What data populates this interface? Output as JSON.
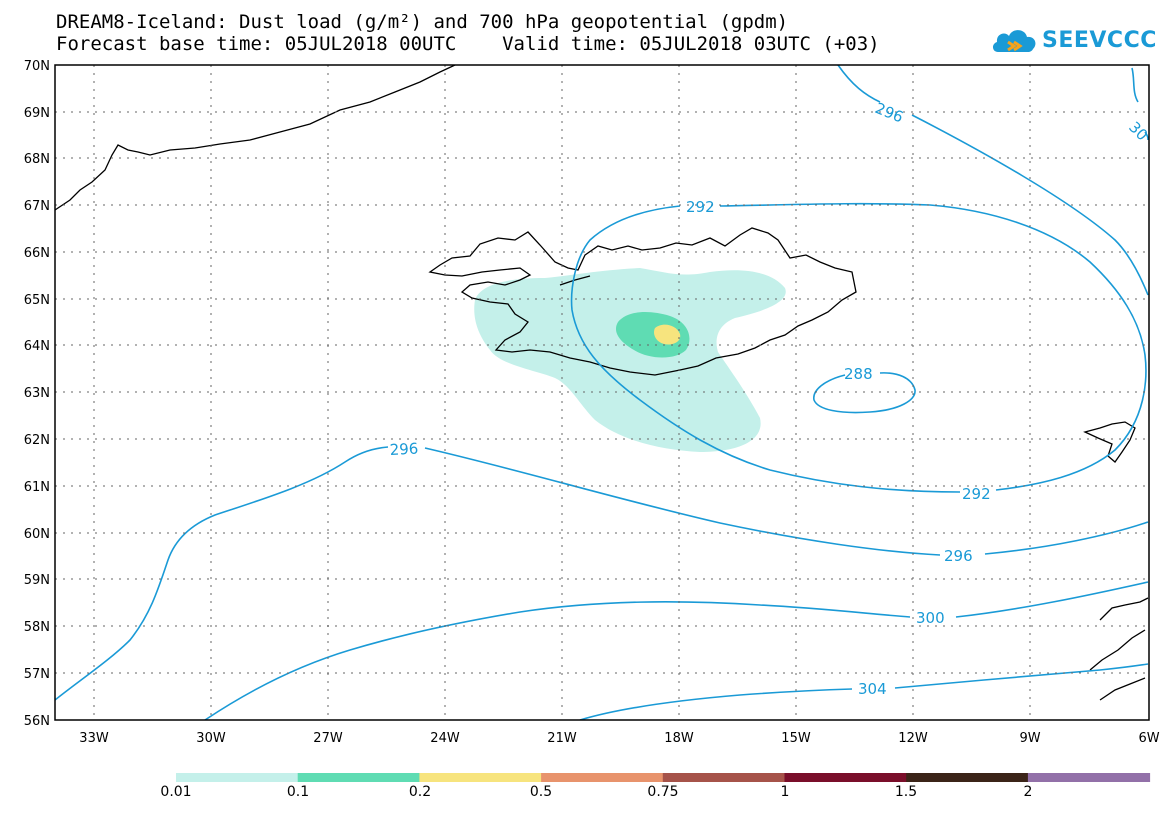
{
  "title": {
    "line1": "DREAM8-Iceland: Dust load (g/m²) and 700 hPa geopotential (gpdm)",
    "line2": "Forecast base time: 05JUL2018 00UTC    Valid time: 05JUL2018 03UTC (+03)"
  },
  "logo": {
    "text": "SEEVCCC",
    "icon": "cloud-icon"
  },
  "map": {
    "lat_labels": [
      "70N",
      "69N",
      "68N",
      "67N",
      "66N",
      "65N",
      "64N",
      "63N",
      "62N",
      "61N",
      "60N",
      "59N",
      "58N",
      "57N",
      "56N"
    ],
    "lon_labels": [
      "33W",
      "30W",
      "27W",
      "24W",
      "21W",
      "18W",
      "15W",
      "12W",
      "9W",
      "6W"
    ],
    "contour_labels": [
      "296",
      "30",
      "292",
      "288",
      "296",
      "292",
      "296",
      "300",
      "304"
    ]
  },
  "legend": {
    "labels": [
      "0.01",
      "0.1",
      "0.2",
      "0.5",
      "0.75",
      "1",
      "1.5",
      "2"
    ],
    "colors": [
      "#c4f0ea",
      "#5fdcb3",
      "#f7e47e",
      "#e8936c",
      "#a6534a",
      "#7a0e2a",
      "#3b2418",
      "#9270a8"
    ]
  },
  "colors": {
    "contour": "#1a9ad6"
  }
}
